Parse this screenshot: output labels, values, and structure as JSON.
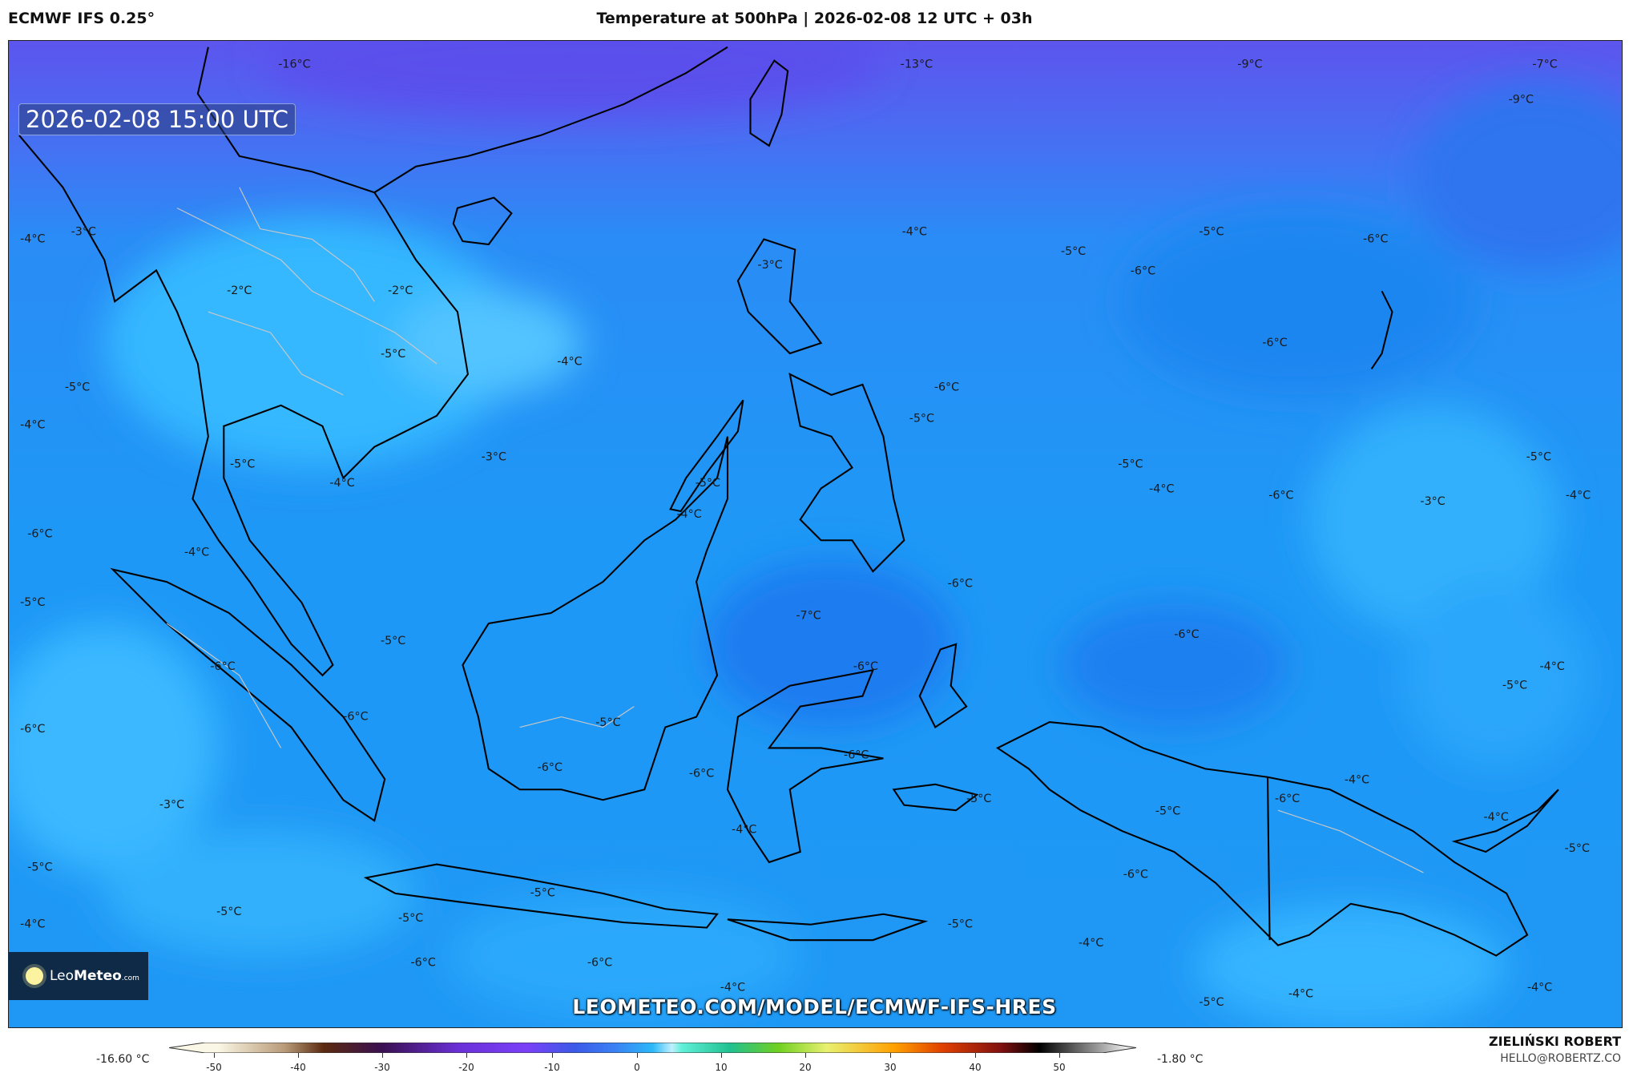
{
  "header": {
    "model": "ECMWF IFS 0.25°",
    "title": "Temperature at 500hPa | 2026-02-08 12 UTC + 03h"
  },
  "map": {
    "valid_time": "2026-02-08 15:00 UTC",
    "url": "LEOMETEO.COM/MODEL/ECMWF-IFS-HRES",
    "logo": {
      "brand_light": "Leo",
      "brand_bold": "Meteo",
      "suffix": ".com"
    },
    "contour_labels": [
      "-16°C",
      "-13°C",
      "-9°C",
      "-7°C",
      "-9°C",
      "-4°C",
      "-3°C",
      "-4°C",
      "-5°C",
      "-6°C",
      "-5°C",
      "-6°C",
      "-3°C",
      "-2°C",
      "-2°C",
      "-6°C",
      "-4°C",
      "-5°C",
      "-5°C",
      "-6°C",
      "-5°C",
      "-4°C",
      "-3°C",
      "-5°C",
      "-5°C",
      "-5°C",
      "-4°C",
      "-5°C",
      "-4°C",
      "-6°C",
      "-3°C",
      "-4°C",
      "-4°C",
      "-6°C",
      "-4°C",
      "-6°C",
      "-5°C",
      "-7°C",
      "-6°C",
      "-5°C",
      "-6°C",
      "-6°C",
      "-4°C",
      "-5°C",
      "-6°C",
      "-5°C",
      "-6°C",
      "-6°C",
      "-6°C",
      "-6°C",
      "-4°C",
      "-6°C",
      "-5°C",
      "-3°C",
      "-5°C",
      "-4°C",
      "-4°C",
      "-5°C",
      "-5°C",
      "-6°C",
      "-5°C",
      "-5°C",
      "-5°C",
      "-4°C",
      "-5°C",
      "-4°C",
      "-6°C",
      "-6°C",
      "-4°C",
      "-4°C",
      "-4°C",
      "-5°C"
    ],
    "colors": {
      "cold": "#5b55ec",
      "mid": "#1e90f5",
      "warm": "#35b8ff",
      "land_outline": "#000000",
      "borders": "#c8c8c8"
    }
  },
  "colorbar": {
    "min_label": "-16.60 °C",
    "max_label": "-1.80 °C",
    "ticks": [
      "-50",
      "-40",
      "-30",
      "-20",
      "-10",
      "0",
      "10",
      "20",
      "30",
      "40",
      "50"
    ]
  },
  "footer": {
    "author": "ZIELIŃSKI ROBERT",
    "email": "HELLO@ROBERTZ.CO"
  }
}
